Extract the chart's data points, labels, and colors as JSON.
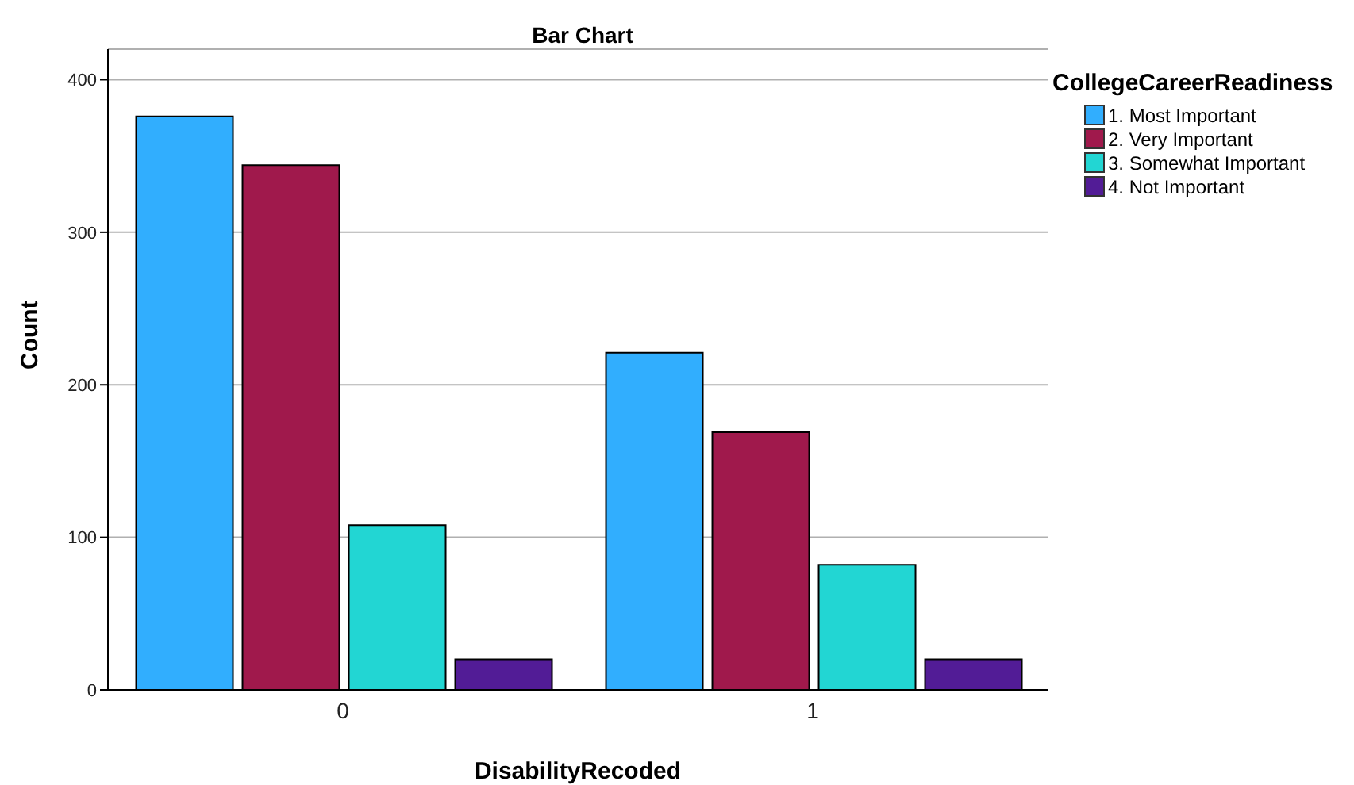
{
  "chart_data": {
    "type": "bar",
    "title": "Bar Chart",
    "xlabel": "DisabilityRecoded",
    "ylabel": "Count",
    "legend_title": "CollegeCareerReadiness",
    "categories": [
      "0",
      "1"
    ],
    "series": [
      {
        "name": "1. Most Important",
        "color": "#31aefe",
        "values": [
          376,
          221
        ]
      },
      {
        "name": "2. Very Important",
        "color": "#a0194c",
        "values": [
          344,
          169
        ]
      },
      {
        "name": "3. Somewhat Important",
        "color": "#22d6d3",
        "values": [
          108,
          82
        ]
      },
      {
        "name": "4. Not Important",
        "color": "#521c96",
        "values": [
          20,
          20
        ]
      }
    ],
    "ylim": [
      0,
      420
    ],
    "yticks": [
      0,
      100,
      200,
      300,
      400
    ],
    "grid": "y",
    "legend": "top right"
  }
}
